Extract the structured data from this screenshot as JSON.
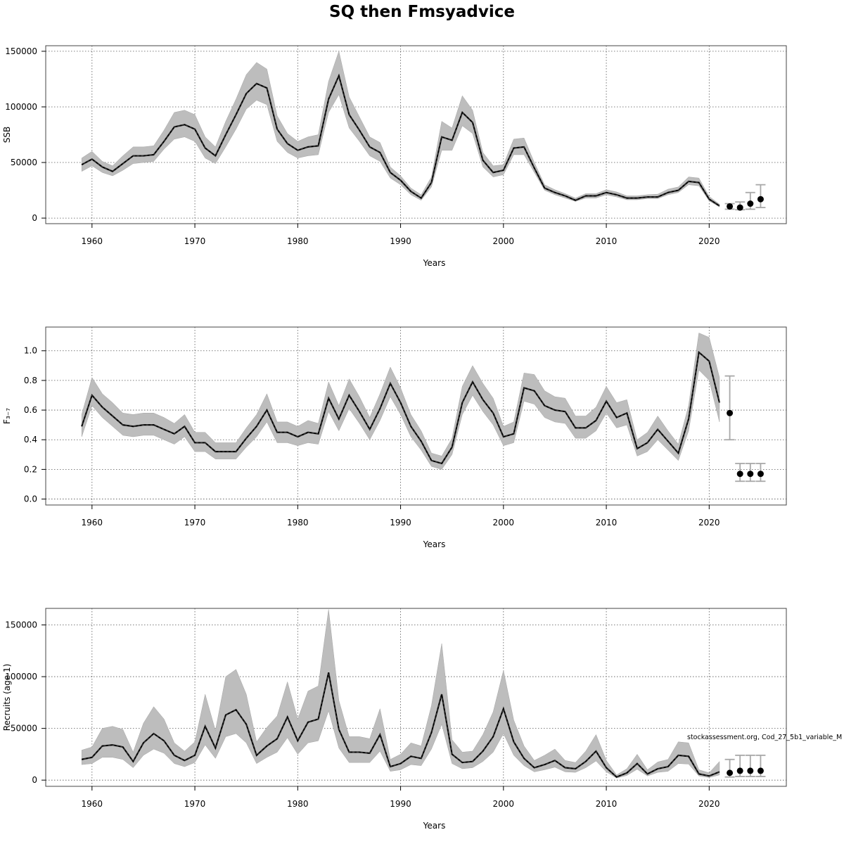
{
  "title": "SQ then Fmsyadvice",
  "credit": "stockassessment.org, Cod_27_5b1_variable_M",
  "chart_data": [
    {
      "type": "line",
      "ylabel": "SSB",
      "xlabel": "Years",
      "xlim": [
        1955.5,
        2027.5
      ],
      "ylim": [
        -5000,
        155000
      ],
      "xticks": [
        1960,
        1970,
        1980,
        1990,
        2000,
        2010,
        2020
      ],
      "yticks": [
        0,
        50000,
        100000,
        150000
      ],
      "grid": true,
      "years": [
        1959,
        1960,
        1961,
        1962,
        1963,
        1964,
        1965,
        1966,
        1967,
        1968,
        1969,
        1970,
        1971,
        1972,
        1973,
        1974,
        1975,
        1976,
        1977,
        1978,
        1979,
        1980,
        1981,
        1982,
        1983,
        1984,
        1985,
        1986,
        1987,
        1988,
        1989,
        1990,
        1991,
        1992,
        1993,
        1994,
        1995,
        1996,
        1997,
        1998,
        1999,
        2000,
        2001,
        2002,
        2003,
        2004,
        2005,
        2006,
        2007,
        2008,
        2009,
        2010,
        2011,
        2012,
        2013,
        2014,
        2015,
        2016,
        2017,
        2018,
        2019,
        2020,
        2021
      ],
      "estimate": [
        48000,
        53000,
        46000,
        42000,
        49000,
        56000,
        56000,
        57000,
        69000,
        82000,
        84000,
        80000,
        63000,
        56000,
        75000,
        93000,
        112000,
        121000,
        117000,
        80000,
        67000,
        61000,
        64000,
        65000,
        107000,
        128000,
        93000,
        79000,
        64000,
        59000,
        41000,
        34000,
        24000,
        18000,
        32000,
        73000,
        70000,
        95000,
        86000,
        52000,
        41000,
        43000,
        63000,
        64000,
        45000,
        27000,
        23000,
        20000,
        16000,
        20000,
        20000,
        23000,
        21000,
        18000,
        18000,
        19000,
        19000,
        23000,
        25000,
        33000,
        32000,
        17000,
        11000
      ],
      "lower": [
        42000,
        47000,
        41000,
        38000,
        43000,
        49000,
        50000,
        51000,
        62000,
        71000,
        73000,
        69000,
        54000,
        49000,
        64000,
        80000,
        98000,
        106000,
        102000,
        69000,
        59000,
        54000,
        56000,
        57000,
        95000,
        111000,
        81000,
        69000,
        56000,
        51000,
        36000,
        30000,
        21000,
        16000,
        28000,
        61000,
        61000,
        83000,
        76000,
        46000,
        37000,
        39000,
        57000,
        57000,
        41000,
        25000,
        21000,
        18000,
        15000,
        18000,
        18000,
        21000,
        19000,
        16500,
        16500,
        17500,
        17500,
        21000,
        23000,
        30000,
        29000,
        15500,
        10000
      ],
      "upper": [
        54000,
        60000,
        51000,
        47000,
        56000,
        64000,
        64000,
        65000,
        79000,
        95000,
        97000,
        93000,
        73000,
        64000,
        87000,
        107000,
        129000,
        140000,
        134000,
        92000,
        76000,
        69000,
        73000,
        75000,
        123000,
        150000,
        109000,
        91000,
        73000,
        68000,
        46000,
        38000,
        27000,
        21000,
        37000,
        87000,
        81000,
        110000,
        97000,
        59000,
        47000,
        48000,
        71000,
        72000,
        50000,
        30000,
        25500,
        22000,
        18000,
        22000,
        22000,
        25500,
        23500,
        20000,
        20000,
        21000,
        21500,
        26000,
        28000,
        37000,
        36000,
        19500,
        12500
      ],
      "forecast": {
        "years": [
          2022,
          2023,
          2024,
          2025
        ],
        "median": [
          10500,
          9500,
          13000,
          17000
        ],
        "lower": [
          8000,
          7500,
          8000,
          9500
        ],
        "upper": [
          13000,
          14500,
          23000,
          30000
        ]
      }
    },
    {
      "type": "line",
      "ylabel": "F₃₋₇",
      "xlabel": "Years",
      "xlim": [
        1955.5,
        2027.5
      ],
      "ylim": [
        -0.04,
        1.16
      ],
      "xticks": [
        1960,
        1970,
        1980,
        1990,
        2000,
        2010,
        2020
      ],
      "yticks": [
        0.0,
        0.2,
        0.4,
        0.6,
        0.8,
        1.0
      ],
      "ytick_labels": [
        "0.0",
        "0.2",
        "0.4",
        "0.6",
        "0.8",
        "1.0"
      ],
      "grid": true,
      "years": [
        1959,
        1960,
        1961,
        1962,
        1963,
        1964,
        1965,
        1966,
        1967,
        1968,
        1969,
        1970,
        1971,
        1972,
        1973,
        1974,
        1975,
        1976,
        1977,
        1978,
        1979,
        1980,
        1981,
        1982,
        1983,
        1984,
        1985,
        1986,
        1987,
        1988,
        1989,
        1990,
        1991,
        1992,
        1993,
        1994,
        1995,
        1996,
        1997,
        1998,
        1999,
        2000,
        2001,
        2002,
        2003,
        2004,
        2005,
        2006,
        2007,
        2008,
        2009,
        2010,
        2011,
        2012,
        2013,
        2014,
        2015,
        2016,
        2017,
        2018,
        2019,
        2020,
        2021
      ],
      "estimate": [
        0.49,
        0.7,
        0.62,
        0.56,
        0.5,
        0.49,
        0.5,
        0.5,
        0.47,
        0.44,
        0.49,
        0.38,
        0.38,
        0.32,
        0.32,
        0.32,
        0.41,
        0.49,
        0.6,
        0.45,
        0.45,
        0.42,
        0.45,
        0.44,
        0.68,
        0.54,
        0.7,
        0.59,
        0.47,
        0.61,
        0.78,
        0.65,
        0.49,
        0.39,
        0.26,
        0.24,
        0.35,
        0.65,
        0.79,
        0.67,
        0.58,
        0.42,
        0.44,
        0.75,
        0.73,
        0.63,
        0.6,
        0.59,
        0.48,
        0.48,
        0.53,
        0.66,
        0.55,
        0.58,
        0.34,
        0.38,
        0.47,
        0.39,
        0.31,
        0.54,
        0.99,
        0.93,
        0.65
      ],
      "lower": [
        0.42,
        0.63,
        0.55,
        0.49,
        0.43,
        0.42,
        0.43,
        0.43,
        0.4,
        0.37,
        0.42,
        0.32,
        0.32,
        0.27,
        0.27,
        0.27,
        0.35,
        0.42,
        0.52,
        0.38,
        0.38,
        0.36,
        0.38,
        0.37,
        0.59,
        0.46,
        0.61,
        0.51,
        0.4,
        0.53,
        0.69,
        0.57,
        0.42,
        0.33,
        0.22,
        0.2,
        0.3,
        0.57,
        0.7,
        0.59,
        0.5,
        0.36,
        0.38,
        0.66,
        0.64,
        0.55,
        0.52,
        0.51,
        0.41,
        0.41,
        0.46,
        0.58,
        0.48,
        0.5,
        0.29,
        0.32,
        0.4,
        0.33,
        0.26,
        0.46,
        0.87,
        0.8,
        0.52
      ],
      "upper": [
        0.57,
        0.82,
        0.71,
        0.65,
        0.58,
        0.57,
        0.58,
        0.58,
        0.55,
        0.51,
        0.57,
        0.45,
        0.45,
        0.38,
        0.38,
        0.38,
        0.48,
        0.57,
        0.71,
        0.52,
        0.52,
        0.49,
        0.53,
        0.51,
        0.79,
        0.63,
        0.81,
        0.69,
        0.55,
        0.71,
        0.89,
        0.75,
        0.57,
        0.46,
        0.31,
        0.29,
        0.41,
        0.76,
        0.9,
        0.78,
        0.68,
        0.49,
        0.52,
        0.85,
        0.84,
        0.73,
        0.69,
        0.68,
        0.56,
        0.56,
        0.62,
        0.76,
        0.65,
        0.67,
        0.4,
        0.45,
        0.56,
        0.46,
        0.37,
        0.63,
        1.12,
        1.09,
        0.82
      ],
      "forecast": {
        "years": [
          2022,
          2023,
          2024,
          2025
        ],
        "median": [
          0.58,
          0.17,
          0.17,
          0.17
        ],
        "lower": [
          0.4,
          0.12,
          0.12,
          0.12
        ],
        "upper": [
          0.83,
          0.24,
          0.24,
          0.24
        ]
      }
    },
    {
      "type": "line",
      "ylabel": "Recruits (age 1)",
      "xlabel": "Years",
      "xlim": [
        1955.5,
        2027.5
      ],
      "ylim": [
        -6000,
        166000
      ],
      "xticks": [
        1960,
        1970,
        1980,
        1990,
        2000,
        2010,
        2020
      ],
      "yticks": [
        0,
        50000,
        100000,
        150000
      ],
      "grid": true,
      "years": [
        1959,
        1960,
        1961,
        1962,
        1963,
        1964,
        1965,
        1966,
        1967,
        1968,
        1969,
        1970,
        1971,
        1972,
        1973,
        1974,
        1975,
        1976,
        1977,
        1978,
        1979,
        1980,
        1981,
        1982,
        1983,
        1984,
        1985,
        1986,
        1987,
        1988,
        1989,
        1990,
        1991,
        1992,
        1993,
        1994,
        1995,
        1996,
        1997,
        1998,
        1999,
        2000,
        2001,
        2002,
        2003,
        2004,
        2005,
        2006,
        2007,
        2008,
        2009,
        2010,
        2011,
        2012,
        2013,
        2014,
        2015,
        2016,
        2017,
        2018,
        2019,
        2020,
        2021
      ],
      "estimate": [
        20000,
        22000,
        33000,
        34000,
        32000,
        18000,
        36000,
        45000,
        38000,
        24000,
        19000,
        24000,
        52000,
        31000,
        63000,
        68000,
        54000,
        24000,
        33000,
        40000,
        61000,
        38000,
        56000,
        59000,
        104000,
        49000,
        27000,
        27000,
        26000,
        44000,
        13000,
        16000,
        23000,
        21000,
        46000,
        83000,
        25000,
        17000,
        18000,
        28000,
        42000,
        69000,
        37000,
        21000,
        12000,
        15000,
        19000,
        12000,
        11000,
        18000,
        28000,
        12000,
        3000,
        7000,
        16000,
        6000,
        11000,
        13000,
        24000,
        23000,
        6000,
        4000,
        8000
      ],
      "lower": [
        15000,
        16000,
        22000,
        22000,
        20000,
        12000,
        24000,
        30000,
        26000,
        16000,
        13000,
        17000,
        34000,
        21000,
        42000,
        45000,
        36000,
        16000,
        22000,
        27000,
        41000,
        25000,
        36000,
        38000,
        67000,
        31000,
        17000,
        17000,
        17000,
        28000,
        8500,
        10000,
        15000,
        14000,
        30000,
        54000,
        16000,
        11000,
        12000,
        18000,
        27000,
        45000,
        24000,
        14000,
        8000,
        10000,
        12500,
        8000,
        7500,
        12000,
        18500,
        8000,
        2000,
        4500,
        10500,
        4000,
        7500,
        8500,
        16000,
        15500,
        4000,
        2500,
        5000
      ],
      "upper": [
        29000,
        32000,
        50000,
        52000,
        49000,
        27000,
        55000,
        71000,
        59000,
        36000,
        28000,
        37000,
        83000,
        48000,
        100000,
        107000,
        83000,
        37000,
        51000,
        62000,
        95000,
        59000,
        86000,
        91000,
        165000,
        77000,
        42000,
        42000,
        40000,
        69000,
        20000,
        25000,
        36000,
        33000,
        72000,
        132000,
        39000,
        27000,
        28000,
        44000,
        66000,
        106000,
        58000,
        33000,
        19000,
        24000,
        30000,
        19000,
        17000,
        28000,
        44000,
        19000,
        5000,
        11000,
        25000,
        10000,
        17500,
        20000,
        37000,
        36000,
        10000,
        7000,
        18000
      ],
      "forecast": {
        "years": [
          2022,
          2023,
          2024,
          2025
        ],
        "median": [
          7000,
          9000,
          9000,
          9000
        ],
        "lower": [
          3000,
          3500,
          3500,
          3500
        ],
        "upper": [
          20000,
          24000,
          24000,
          24000
        ]
      }
    }
  ]
}
